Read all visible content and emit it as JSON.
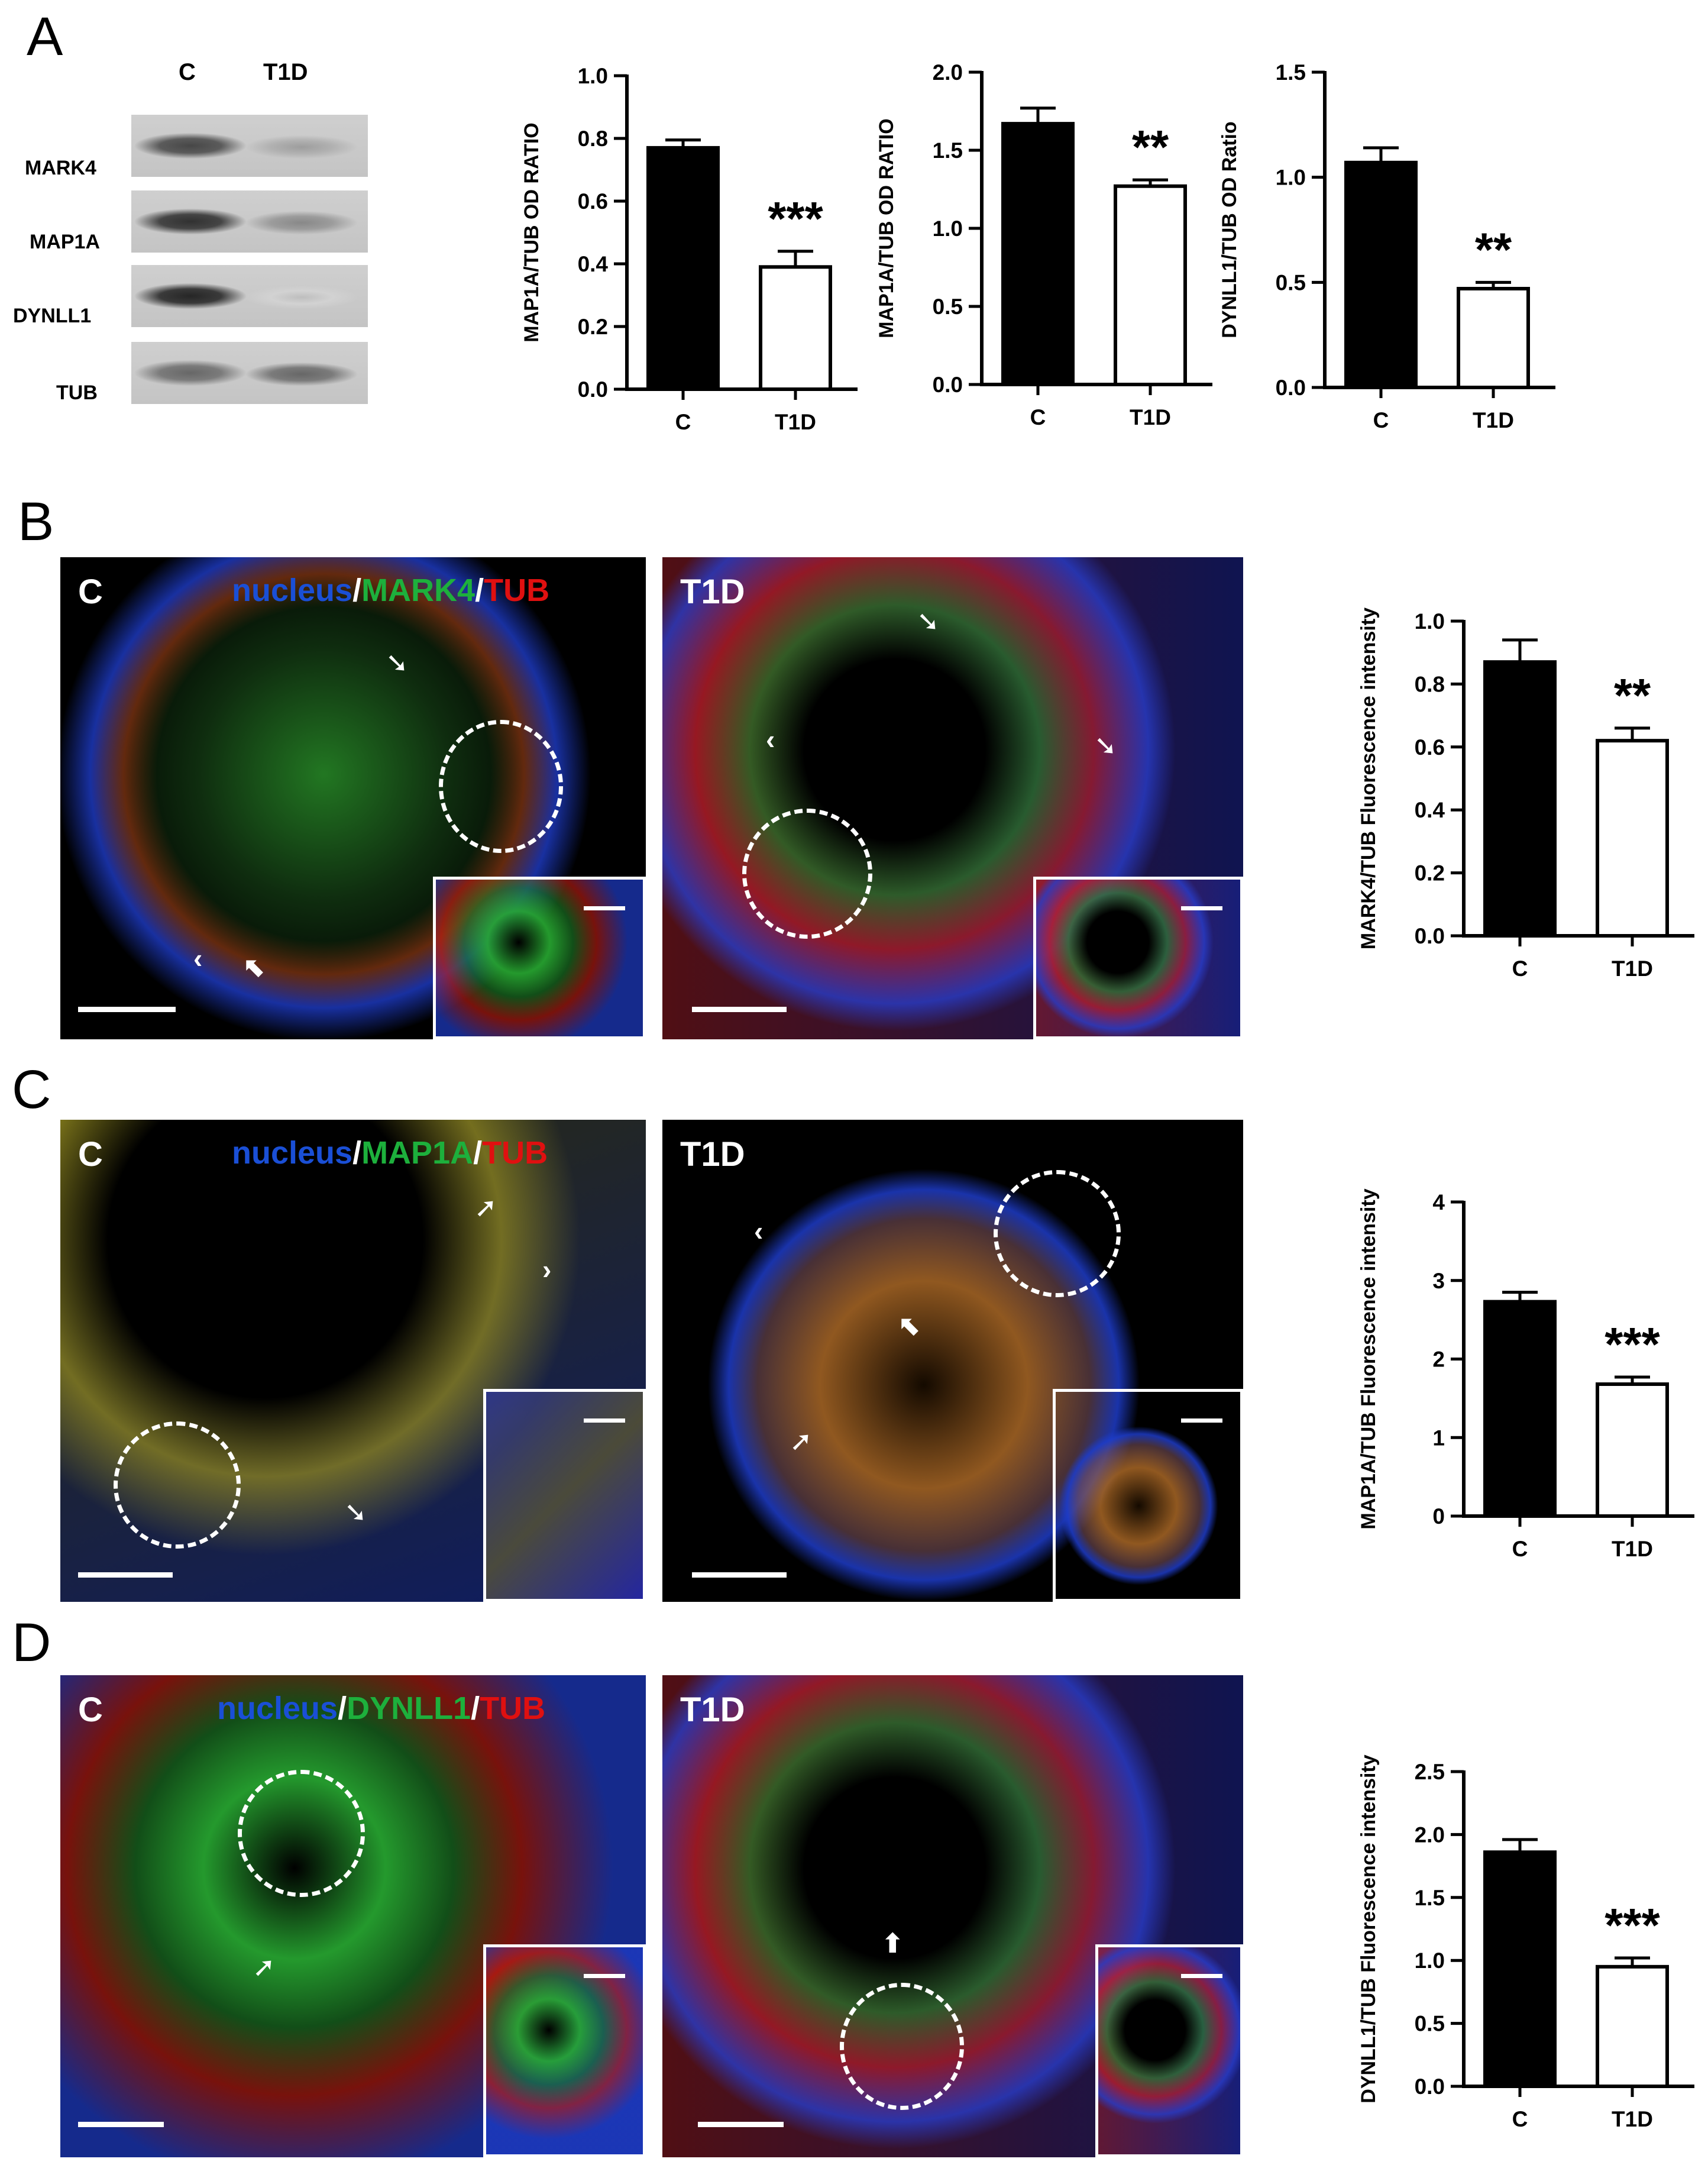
{
  "panels": {
    "a": "A",
    "b": "B",
    "c": "C",
    "d": "D"
  },
  "western_blot": {
    "columns": [
      "C",
      "T1D"
    ],
    "rows": [
      {
        "label": "MARK4",
        "c": 0.85,
        "t1d": 0.45
      },
      {
        "label": "MAP1A",
        "c": 0.95,
        "t1d": 0.55
      },
      {
        "label": "DYNLL1",
        "c": 1.0,
        "t1d": 0.3
      },
      {
        "label": "TUB",
        "c": 0.7,
        "t1d": 0.7
      }
    ]
  },
  "micrographs": {
    "b": {
      "c_label": "C",
      "t1d_label": "T1D",
      "stain": [
        "nucleus",
        "/",
        "MARK4",
        "/",
        "TUB"
      ]
    },
    "c": {
      "c_label": "C",
      "t1d_label": "T1D",
      "stain": [
        "nucleus",
        "/",
        "MAP1A",
        "/",
        "TUB"
      ]
    },
    "d": {
      "c_label": "C",
      "t1d_label": "T1D",
      "stain": [
        "nucleus",
        "/",
        "DYNLL1",
        "/",
        "TUB"
      ]
    },
    "colors": {
      "nucleus": "#1a4fd6",
      "green": "#1db03c",
      "red": "#e01010",
      "slash": "#ffffff"
    }
  },
  "chart_data": [
    {
      "id": "a1",
      "type": "bar",
      "categories": [
        "C",
        "T1D"
      ],
      "values": [
        0.77,
        0.39
      ],
      "errors": [
        0.025,
        0.05
      ],
      "title": "",
      "xlabel": "",
      "ylabel": "MAP1A/TUB OD RATIO",
      "ylim": [
        0,
        1.0
      ],
      "ticks": [
        "0.0",
        "0.2",
        "0.4",
        "0.6",
        "0.8",
        "1.0"
      ],
      "significance": "***",
      "fills": [
        "#000000",
        "#ffffff"
      ]
    },
    {
      "id": "a2",
      "type": "bar",
      "categories": [
        "C",
        "T1D"
      ],
      "values": [
        1.67,
        1.27
      ],
      "errors": [
        0.1,
        0.04
      ],
      "title": "",
      "xlabel": "",
      "ylabel": "MAP1A/TUB OD RATIO",
      "ylim": [
        0,
        2.0
      ],
      "ticks": [
        "0.0",
        "0.5",
        "1.0",
        "1.5",
        "2.0"
      ],
      "significance": "**",
      "fills": [
        "#000000",
        "#ffffff"
      ]
    },
    {
      "id": "a3",
      "type": "bar",
      "categories": [
        "C",
        "T1D"
      ],
      "values": [
        1.07,
        0.47
      ],
      "errors": [
        0.07,
        0.03
      ],
      "title": "",
      "xlabel": "",
      "ylabel": "DYNLL1/TUB OD Ratio",
      "ylim": [
        0,
        1.5
      ],
      "ticks": [
        "0.0",
        "0.5",
        "1.0",
        "1.5"
      ],
      "significance": "**",
      "fills": [
        "#000000",
        "#ffffff"
      ]
    },
    {
      "id": "b",
      "type": "bar",
      "categories": [
        "C",
        "T1D"
      ],
      "values": [
        0.87,
        0.62
      ],
      "errors": [
        0.07,
        0.04
      ],
      "title": "",
      "xlabel": "",
      "ylabel": "MARK4/TUB Fluorescence intensity",
      "ylim": [
        0,
        1.0
      ],
      "ticks": [
        "0.0",
        "0.2",
        "0.4",
        "0.6",
        "0.8",
        "1.0"
      ],
      "significance": "**",
      "fills": [
        "#000000",
        "#ffffff"
      ]
    },
    {
      "id": "c",
      "type": "bar",
      "categories": [
        "C",
        "T1D"
      ],
      "values": [
        2.73,
        1.68
      ],
      "errors": [
        0.12,
        0.09
      ],
      "title": "",
      "xlabel": "",
      "ylabel": "MAP1A/TUB Fluorescence intensity",
      "ylim": [
        0,
        4
      ],
      "ticks": [
        "0",
        "1",
        "2",
        "3",
        "4"
      ],
      "significance": "***",
      "fills": [
        "#000000",
        "#ffffff"
      ]
    },
    {
      "id": "d",
      "type": "bar",
      "categories": [
        "C",
        "T1D"
      ],
      "values": [
        1.86,
        0.95
      ],
      "errors": [
        0.1,
        0.07
      ],
      "title": "",
      "xlabel": "",
      "ylabel": "DYNLL1/TUB Fluorescence intensity",
      "ylim": [
        0,
        2.5
      ],
      "ticks": [
        "0.0",
        "0.5",
        "1.0",
        "1.5",
        "2.0",
        "2.5"
      ],
      "significance": "***",
      "fills": [
        "#000000",
        "#ffffff"
      ]
    }
  ]
}
